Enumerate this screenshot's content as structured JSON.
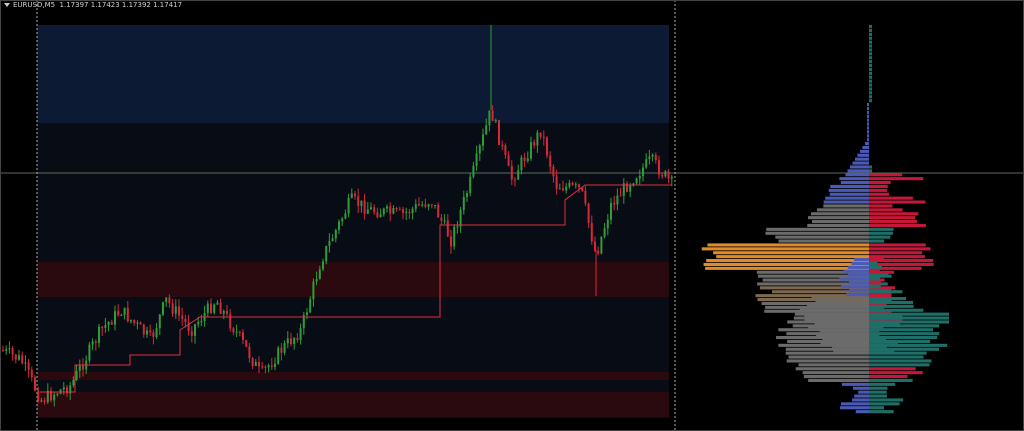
{
  "header": {
    "symbol": "EURUSD,M5",
    "open": "1.17397",
    "high": "1.17423",
    "low": "1.17392",
    "close": "1.17417"
  },
  "colors": {
    "background": "#000000",
    "bull_candle": "#2e9e3a",
    "bear_candle": "#d8263a",
    "poc_line": "#e0303f",
    "profile_neutral": "#6b6b6b",
    "profile_low": "#4b5bb5",
    "profile_poc": "#e08a2a",
    "profile_sell": "#c4183a",
    "profile_buy": "#1f6f68",
    "value_zone_upper": "#0d1a33",
    "value_zone_lower": "#2a0a0e"
  }
}
